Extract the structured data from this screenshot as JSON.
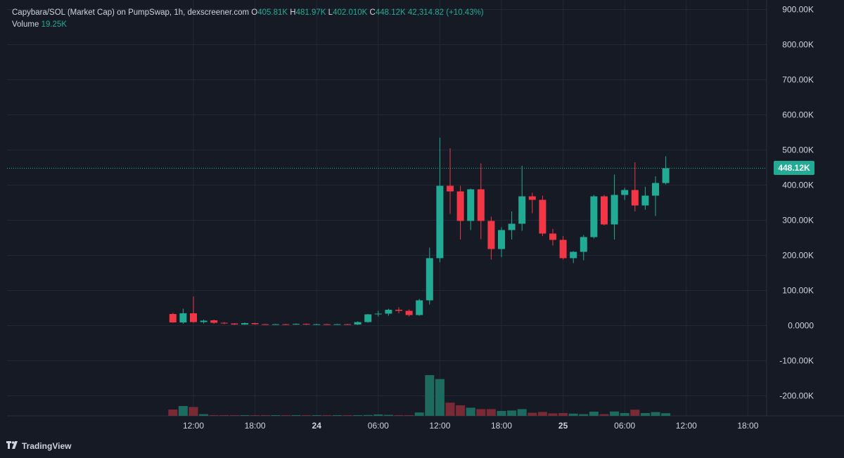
{
  "legend": {
    "title": "Capybara/SOL (Market Cap) on PumpSwap, 1h, dexscreener.com",
    "o_label": "O",
    "o_value": "405.81K",
    "h_label": "H",
    "h_value": "481.97K",
    "l_label": "L",
    "l_value": "402.010K",
    "c_label": "C",
    "c_value": "448.12K",
    "change": "42,314.82 (+10.43%)",
    "volume_label": "Volume",
    "volume_value": "19.25K"
  },
  "last_price_label": "448.12K",
  "footer": {
    "brand": "TradingView",
    "brand_icon": "tradingview-logo-icon"
  },
  "colors": {
    "background": "#161a25",
    "grid": "#232836",
    "up": "#22ab94",
    "down": "#f23645",
    "up_volume": "#1d6b5f",
    "down_volume": "#7a2a35",
    "text": "#d1d4dc"
  },
  "chart_data": {
    "type": "candlestick",
    "y_ticks": [
      "900.00K",
      "800.00K",
      "700.00K",
      "600.00K",
      "500.00K",
      "400.00K",
      "300.00K",
      "200.00K",
      "100.00K",
      "0.0000",
      "-100.00K",
      "-200.00K"
    ],
    "y_range": [
      -250000,
      920000
    ],
    "x_ticks": [
      {
        "label": "12:00",
        "bold": false,
        "hour": 10
      },
      {
        "label": "18:00",
        "bold": false,
        "hour": 16
      },
      {
        "label": "24",
        "bold": true,
        "hour": 22
      },
      {
        "label": "06:00",
        "bold": false,
        "hour": 28
      },
      {
        "label": "12:00",
        "bold": false,
        "hour": 34
      },
      {
        "label": "18:00",
        "bold": false,
        "hour": 40
      },
      {
        "label": "25",
        "bold": true,
        "hour": 46
      },
      {
        "label": "06:00",
        "bold": false,
        "hour": 52
      },
      {
        "label": "12:00",
        "bold": false,
        "hour": 58
      },
      {
        "label": "18:00",
        "bold": false,
        "hour": 64
      }
    ],
    "last_price": 448120,
    "candles": [
      {
        "h": 8,
        "o": 33000,
        "hi": 36000,
        "lo": 8000,
        "c": 9000,
        "v": 45
      },
      {
        "h": 9,
        "o": 9000,
        "hi": 48000,
        "lo": 5000,
        "c": 35000,
        "v": 70
      },
      {
        "h": 10,
        "o": 35000,
        "hi": 83000,
        "lo": 8000,
        "c": 10000,
        "v": 63
      },
      {
        "h": 11,
        "o": 10000,
        "hi": 17000,
        "lo": 6000,
        "c": 14000,
        "v": 12
      },
      {
        "h": 12,
        "o": 15000,
        "hi": 17000,
        "lo": 5000,
        "c": 8000,
        "v": 4
      },
      {
        "h": 13,
        "o": 8000,
        "hi": 10000,
        "lo": 4000,
        "c": 6000,
        "v": 3
      },
      {
        "h": 14,
        "o": 6000,
        "hi": 7000,
        "lo": 2000,
        "c": 3000,
        "v": 2
      },
      {
        "h": 15,
        "o": 3000,
        "hi": 9000,
        "lo": 2000,
        "c": 7000,
        "v": 2
      },
      {
        "h": 16,
        "o": 7000,
        "hi": 8000,
        "lo": 3000,
        "c": 4000,
        "v": 2
      },
      {
        "h": 17,
        "o": 4000,
        "hi": 5000,
        "lo": 2000,
        "c": 3000,
        "v": 1
      },
      {
        "h": 18,
        "o": 3000,
        "hi": 5000,
        "lo": 2000,
        "c": 4000,
        "v": 1
      },
      {
        "h": 19,
        "o": 4000,
        "hi": 5000,
        "lo": 2000,
        "c": 3000,
        "v": 1
      },
      {
        "h": 20,
        "o": 3000,
        "hi": 6000,
        "lo": 2000,
        "c": 5000,
        "v": 2
      },
      {
        "h": 21,
        "o": 5000,
        "hi": 6000,
        "lo": 2000,
        "c": 3000,
        "v": 1
      },
      {
        "h": 22,
        "o": 3000,
        "hi": 5000,
        "lo": 2000,
        "c": 4000,
        "v": 1
      },
      {
        "h": 23,
        "o": 4000,
        "hi": 5000,
        "lo": 2000,
        "c": 3000,
        "v": 1
      },
      {
        "h": 24,
        "o": 3000,
        "hi": 5000,
        "lo": 2000,
        "c": 4000,
        "v": 1
      },
      {
        "h": 25,
        "o": 4000,
        "hi": 5000,
        "lo": 2000,
        "c": 3000,
        "v": 1
      },
      {
        "h": 26,
        "o": 3000,
        "hi": 12000,
        "lo": 2000,
        "c": 10000,
        "v": 3
      },
      {
        "h": 27,
        "o": 10000,
        "hi": 33000,
        "lo": 8000,
        "c": 32000,
        "v": 6
      },
      {
        "h": 28,
        "o": 32000,
        "hi": 42000,
        "lo": 26000,
        "c": 34000,
        "v": 10
      },
      {
        "h": 29,
        "o": 34000,
        "hi": 48000,
        "lo": 28000,
        "c": 45000,
        "v": 7
      },
      {
        "h": 30,
        "o": 45000,
        "hi": 52000,
        "lo": 35000,
        "c": 42000,
        "v": 5
      },
      {
        "h": 31,
        "o": 42000,
        "hi": 46000,
        "lo": 26000,
        "c": 30000,
        "v": 5
      },
      {
        "h": 32,
        "o": 30000,
        "hi": 76000,
        "lo": 28000,
        "c": 72000,
        "v": 24
      },
      {
        "h": 33,
        "o": 72000,
        "hi": 222000,
        "lo": 60000,
        "c": 192000,
        "v": 290
      },
      {
        "h": 34,
        "o": 192000,
        "hi": 535000,
        "lo": 180000,
        "c": 398000,
        "v": 262
      },
      {
        "h": 35,
        "o": 398000,
        "hi": 505000,
        "lo": 318000,
        "c": 382000,
        "v": 94
      },
      {
        "h": 36,
        "o": 382000,
        "hi": 398000,
        "lo": 245000,
        "c": 298000,
        "v": 75
      },
      {
        "h": 37,
        "o": 298000,
        "hi": 390000,
        "lo": 272000,
        "c": 388000,
        "v": 58
      },
      {
        "h": 38,
        "o": 388000,
        "hi": 462000,
        "lo": 246000,
        "c": 298000,
        "v": 48
      },
      {
        "h": 39,
        "o": 298000,
        "hi": 310000,
        "lo": 188000,
        "c": 218000,
        "v": 48
      },
      {
        "h": 40,
        "o": 218000,
        "hi": 280000,
        "lo": 195000,
        "c": 272000,
        "v": 35
      },
      {
        "h": 41,
        "o": 272000,
        "hi": 325000,
        "lo": 245000,
        "c": 290000,
        "v": 38
      },
      {
        "h": 42,
        "o": 290000,
        "hi": 455000,
        "lo": 270000,
        "c": 368000,
        "v": 48
      },
      {
        "h": 43,
        "o": 368000,
        "hi": 378000,
        "lo": 320000,
        "c": 358000,
        "v": 22
      },
      {
        "h": 44,
        "o": 358000,
        "hi": 370000,
        "lo": 255000,
        "c": 262000,
        "v": 28
      },
      {
        "h": 45,
        "o": 262000,
        "hi": 275000,
        "lo": 228000,
        "c": 244000,
        "v": 18
      },
      {
        "h": 46,
        "o": 244000,
        "hi": 255000,
        "lo": 188000,
        "c": 192000,
        "v": 20
      },
      {
        "h": 47,
        "o": 192000,
        "hi": 212000,
        "lo": 178000,
        "c": 210000,
        "v": 16
      },
      {
        "h": 48,
        "o": 210000,
        "hi": 258000,
        "lo": 186000,
        "c": 252000,
        "v": 12
      },
      {
        "h": 49,
        "o": 252000,
        "hi": 372000,
        "lo": 248000,
        "c": 368000,
        "v": 30
      },
      {
        "h": 50,
        "o": 368000,
        "hi": 372000,
        "lo": 285000,
        "c": 288000,
        "v": 12
      },
      {
        "h": 51,
        "o": 288000,
        "hi": 430000,
        "lo": 245000,
        "c": 372000,
        "v": 31
      },
      {
        "h": 52,
        "o": 372000,
        "hi": 392000,
        "lo": 358000,
        "c": 386000,
        "v": 20
      },
      {
        "h": 53,
        "o": 386000,
        "hi": 465000,
        "lo": 325000,
        "c": 342000,
        "v": 44
      },
      {
        "h": 54,
        "o": 342000,
        "hi": 395000,
        "lo": 330000,
        "c": 370000,
        "v": 20
      },
      {
        "h": 55,
        "o": 370000,
        "hi": 425000,
        "lo": 312000,
        "c": 406000,
        "v": 27
      },
      {
        "h": 56,
        "o": 405810,
        "hi": 481970,
        "lo": 402010,
        "c": 448120,
        "v": 19
      }
    ]
  }
}
